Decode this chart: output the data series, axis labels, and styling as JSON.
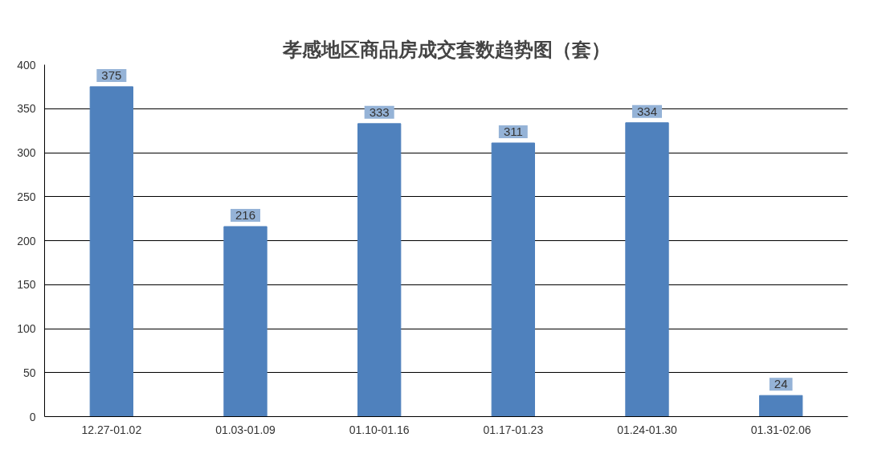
{
  "chart_data": {
    "type": "bar",
    "title": "孝感地区商品房成交套数趋势图（套）",
    "categories": [
      "12.27-01.02",
      "01.03-01.09",
      "01.10-01.16",
      "01.17-01.23",
      "01.24-01.30",
      "01.31-02.06"
    ],
    "values": [
      375,
      216,
      333,
      311,
      334,
      24
    ],
    "color": "#4f81bd",
    "ylim": [
      0,
      400
    ],
    "yticks": [
      0,
      50,
      100,
      150,
      200,
      250,
      300,
      350,
      400
    ],
    "grid": "y",
    "data_labels": true
  }
}
